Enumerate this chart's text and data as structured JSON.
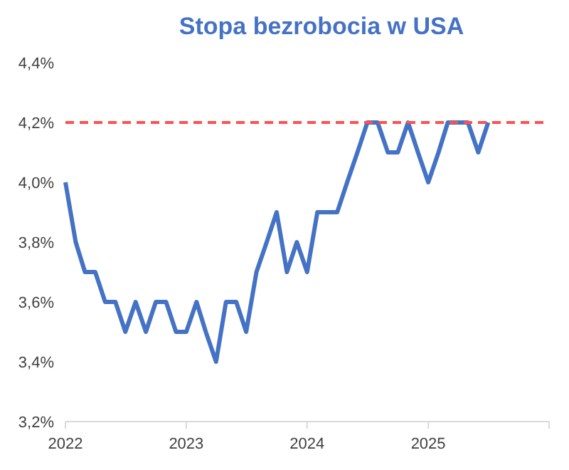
{
  "chart_data": {
    "type": "line",
    "title": "Stopa bezrobocia w USA",
    "x": [
      "2022-01",
      "2022-02",
      "2022-03",
      "2022-04",
      "2022-05",
      "2022-06",
      "2022-07",
      "2022-08",
      "2022-09",
      "2022-10",
      "2022-11",
      "2022-12",
      "2023-01",
      "2023-02",
      "2023-03",
      "2023-04",
      "2023-05",
      "2023-06",
      "2023-07",
      "2023-08",
      "2023-09",
      "2023-10",
      "2023-11",
      "2023-12",
      "2024-01",
      "2024-02",
      "2024-03",
      "2024-04",
      "2024-05",
      "2024-06",
      "2024-07",
      "2024-08",
      "2024-09",
      "2024-10",
      "2024-11",
      "2024-12",
      "2025-01",
      "2025-02",
      "2025-03",
      "2025-04",
      "2025-05",
      "2025-06",
      "2025-07"
    ],
    "series": [
      {
        "color": "#4472c4",
        "values": [
          4.0,
          3.8,
          3.7,
          3.7,
          3.6,
          3.6,
          3.5,
          3.6,
          3.5,
          3.6,
          3.6,
          3.5,
          3.5,
          3.6,
          3.5,
          3.4,
          3.6,
          3.6,
          3.5,
          3.7,
          3.8,
          3.9,
          3.7,
          3.8,
          3.7,
          3.9,
          3.9,
          3.9,
          4.0,
          4.1,
          4.2,
          4.2,
          4.1,
          4.1,
          4.2,
          4.1,
          4.0,
          4.1,
          4.2,
          4.2,
          4.2,
          4.1,
          4.2
        ]
      }
    ],
    "xlim": [
      "2022-01",
      "2026-01"
    ],
    "xticks": [
      {
        "value": "2022",
        "label": "2022"
      },
      {
        "value": "2023",
        "label": "2023"
      },
      {
        "value": "2024",
        "label": "2024"
      },
      {
        "value": "2025",
        "label": "2025"
      },
      {
        "value": "2026",
        "label": null
      }
    ],
    "ylim": [
      3.2,
      4.4
    ],
    "yticks": [
      {
        "value": 3.2,
        "label": "3,2%"
      },
      {
        "value": 3.4,
        "label": "3,4%"
      },
      {
        "value": 3.6,
        "label": "3,6%"
      },
      {
        "value": 3.8,
        "label": "3,8%"
      },
      {
        "value": 4.0,
        "label": "4,0%"
      },
      {
        "value": 4.2,
        "label": "4,2%"
      },
      {
        "value": 4.4,
        "label": "4,4%"
      }
    ],
    "ref_lines": [
      {
        "axis": "y",
        "value": 4.2,
        "color": "#ff5050",
        "line_style": "dashed"
      }
    ],
    "grid": false,
    "marker": "none",
    "line_style": "solid"
  }
}
